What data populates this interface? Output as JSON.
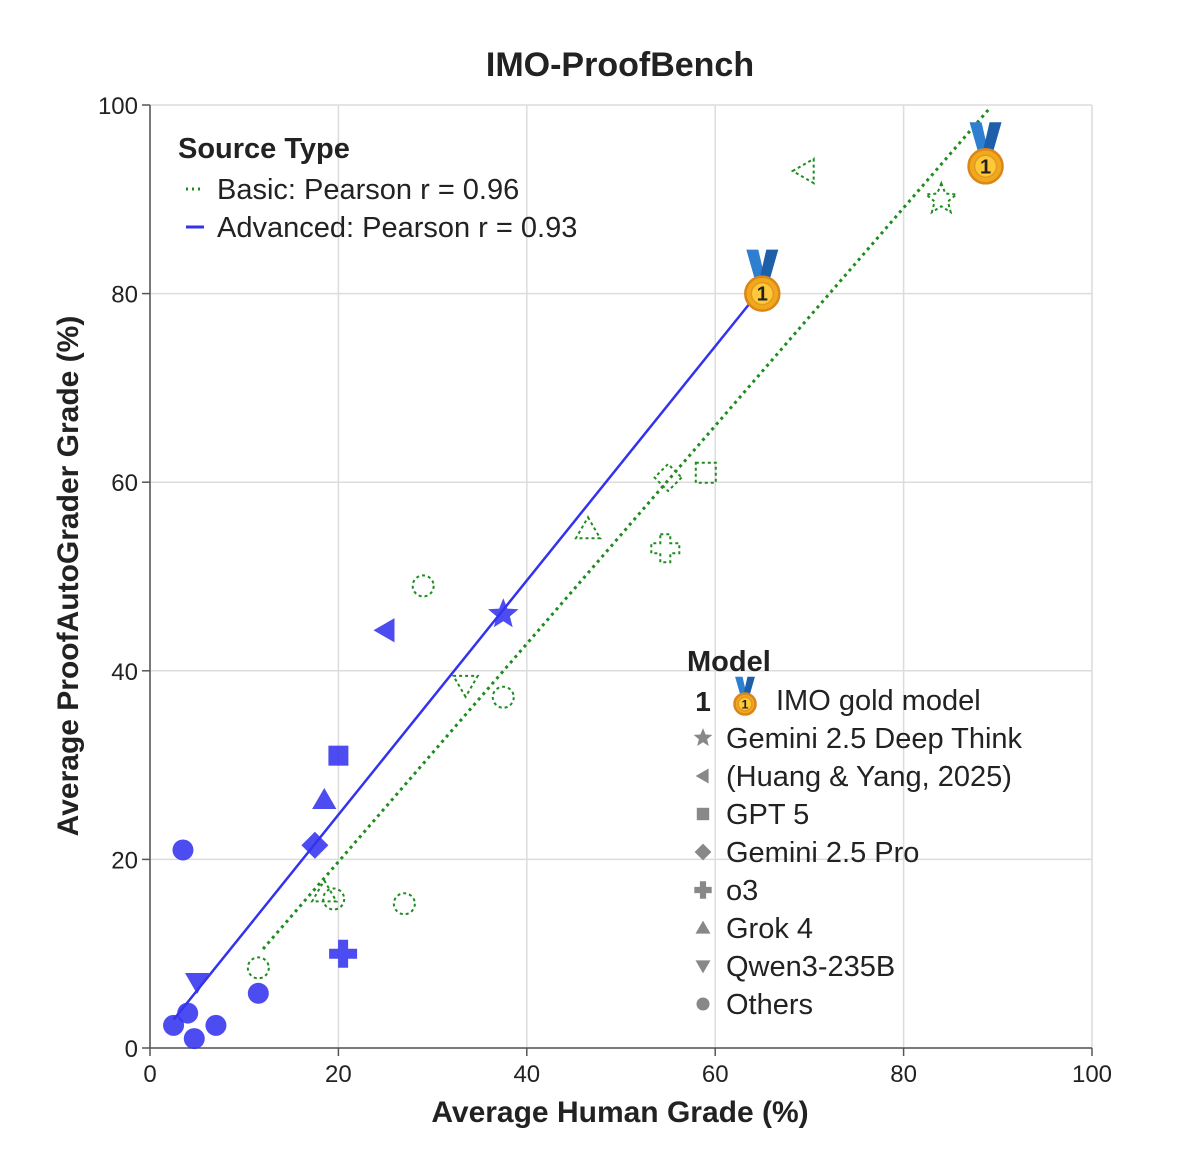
{
  "chart_data": {
    "type": "scatter",
    "title": "IMO-ProofBench",
    "xlabel": "Average Human Grade (%)",
    "ylabel": "Average ProofAutoGrader Grade (%)",
    "xlim": [
      0,
      100
    ],
    "ylim": [
      0,
      100
    ],
    "xticks": [
      0,
      20,
      40,
      60,
      80,
      100
    ],
    "yticks": [
      0,
      20,
      40,
      60,
      80,
      100
    ],
    "grid": true,
    "colors": {
      "basic": "#1e8c1e",
      "advanced": "#3333ee",
      "gold": "#f2a81d",
      "ribbon": "#2f7fd0",
      "legend_marker": "#888888"
    },
    "source_legend": {
      "title": "Source Type",
      "placement": "top-left",
      "entries": [
        {
          "key": "basic",
          "label": "Basic: Pearson r = 0.96",
          "style": "dotted"
        },
        {
          "key": "advanced",
          "label": "Advanced: Pearson r = 0.93",
          "style": "solid"
        }
      ]
    },
    "model_legend": {
      "title": "Model",
      "placement": "lower-right",
      "gold_number": "1",
      "entries": [
        {
          "marker": "medal",
          "label": "IMO gold model"
        },
        {
          "marker": "star",
          "label": "Gemini 2.5 Deep Think"
        },
        {
          "marker": "triangle-left",
          "label": "(Huang & Yang, 2025)"
        },
        {
          "marker": "square",
          "label": "GPT 5"
        },
        {
          "marker": "diamond",
          "label": "Gemini 2.5 Pro"
        },
        {
          "marker": "plus",
          "label": "o3"
        },
        {
          "marker": "triangle-up",
          "label": "Grok 4"
        },
        {
          "marker": "triangle-down",
          "label": "Qwen3-235B"
        },
        {
          "marker": "circle",
          "label": "Others"
        }
      ]
    },
    "series": [
      {
        "name": "Basic",
        "fit": [
          [
            12,
            10.5
          ],
          [
            89,
            99.5
          ]
        ],
        "points": [
          {
            "model": "medal",
            "x": 88.7,
            "y": 93.5
          },
          {
            "model": "star",
            "x": 84,
            "y": 90
          },
          {
            "model": "triangle-left",
            "x": 69.5,
            "y": 93
          },
          {
            "model": "square",
            "x": 59,
            "y": 61
          },
          {
            "model": "diamond",
            "x": 55,
            "y": 60.5
          },
          {
            "model": "plus",
            "x": 54.7,
            "y": 53
          },
          {
            "model": "triangle-up",
            "x": 46.5,
            "y": 55
          },
          {
            "model": "triangle-down",
            "x": 33.5,
            "y": 38.5
          },
          {
            "model": "circle",
            "x": 29,
            "y": 49
          },
          {
            "model": "circle",
            "x": 37.5,
            "y": 37.2
          },
          {
            "model": "circle",
            "x": 27,
            "y": 15.3
          },
          {
            "model": "circle",
            "x": 19.5,
            "y": 15.8
          },
          {
            "model": "triangle-up",
            "x": 18.5,
            "y": 16.5
          },
          {
            "model": "circle",
            "x": 11.5,
            "y": 8.5
          }
        ]
      },
      {
        "name": "Advanced",
        "fit": [
          [
            2.5,
            3
          ],
          [
            64.5,
            80
          ]
        ],
        "points": [
          {
            "model": "medal",
            "x": 65,
            "y": 80
          },
          {
            "model": "star",
            "x": 37.5,
            "y": 46
          },
          {
            "model": "triangle-left",
            "x": 25,
            "y": 44.3
          },
          {
            "model": "square",
            "x": 20,
            "y": 31
          },
          {
            "model": "triangle-up",
            "x": 18.5,
            "y": 26.3
          },
          {
            "model": "diamond",
            "x": 17.5,
            "y": 21.5
          },
          {
            "model": "plus",
            "x": 20.5,
            "y": 10
          },
          {
            "model": "circle",
            "x": 3.5,
            "y": 21
          },
          {
            "model": "triangle-down",
            "x": 5,
            "y": 7
          },
          {
            "model": "circle",
            "x": 11.5,
            "y": 5.8
          },
          {
            "model": "circle",
            "x": 4,
            "y": 3.7
          },
          {
            "model": "circle",
            "x": 2.5,
            "y": 2.4
          },
          {
            "model": "circle",
            "x": 7,
            "y": 2.4
          },
          {
            "model": "circle",
            "x": 4.7,
            "y": 1
          }
        ]
      }
    ]
  }
}
